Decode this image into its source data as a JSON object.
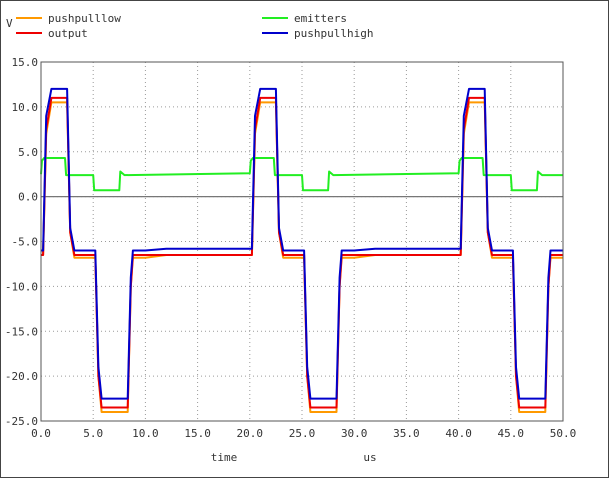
{
  "chart_data": {
    "type": "line",
    "title": "",
    "xlabel": "time",
    "xunit": "us",
    "ylabel": "V",
    "xlim": [
      0,
      50
    ],
    "ylim": [
      -25,
      15
    ],
    "xticks": [
      0,
      5,
      10,
      15,
      20,
      25,
      30,
      35,
      40,
      45,
      50
    ],
    "yticks": [
      15,
      10,
      5,
      0,
      -5,
      -10,
      -15,
      -20,
      -25
    ],
    "xtick_labels": [
      "0.0",
      "5.0",
      "10.0",
      "15.0",
      "20.0",
      "25.0",
      "30.0",
      "35.0",
      "40.0",
      "45.0",
      "50.0"
    ],
    "ytick_labels": [
      "15.0",
      "10.0",
      "5.0",
      "0.0",
      "-5.0",
      "-10.0",
      "-15.0",
      "-20.0",
      "-25.0"
    ],
    "grid": true,
    "zero_line": true,
    "legend_position": "top",
    "series": [
      {
        "name": "pushpulllow",
        "color": "#ff9900",
        "x": [
          0.0,
          0.2,
          0.5,
          1.0,
          2.5,
          2.8,
          3.2,
          5.2,
          5.5,
          5.8,
          8.3,
          8.6,
          8.8,
          10.0,
          12.0,
          20.0,
          20.2,
          20.5,
          21.0,
          22.5,
          22.8,
          23.2,
          25.2,
          25.5,
          25.8,
          28.3,
          28.6,
          28.8,
          30.0,
          32.0,
          40.0,
          40.2,
          40.5,
          41.0,
          42.5,
          42.8,
          43.2,
          45.2,
          45.5,
          45.8,
          48.3,
          48.6,
          48.8,
          50.0
        ],
        "values": [
          -6.5,
          -6.5,
          7.0,
          10.5,
          10.5,
          -4.0,
          -6.8,
          -6.8,
          -20.0,
          -24.0,
          -24.0,
          -10.0,
          -6.8,
          -6.8,
          -6.5,
          -6.5,
          -6.5,
          7.0,
          10.5,
          10.5,
          -4.0,
          -6.8,
          -6.8,
          -20.0,
          -24.0,
          -24.0,
          -10.0,
          -6.8,
          -6.8,
          -6.5,
          -6.5,
          -6.5,
          7.0,
          10.5,
          10.5,
          -4.0,
          -6.8,
          -6.8,
          -20.0,
          -24.0,
          -24.0,
          -10.0,
          -6.8,
          -6.8
        ]
      },
      {
        "name": "output",
        "color": "#ee0000",
        "x": [
          0.0,
          0.2,
          0.5,
          1.0,
          2.5,
          2.8,
          3.2,
          5.2,
          5.5,
          5.8,
          8.3,
          8.6,
          8.8,
          10.0,
          12.0,
          20.0,
          20.2,
          20.5,
          21.0,
          22.5,
          22.8,
          23.2,
          25.2,
          25.5,
          25.8,
          28.3,
          28.6,
          28.8,
          30.0,
          32.0,
          40.0,
          40.2,
          40.5,
          41.0,
          42.5,
          42.8,
          43.2,
          45.2,
          45.5,
          45.8,
          48.3,
          48.6,
          48.8,
          50.0
        ],
        "values": [
          -6.5,
          -6.5,
          7.5,
          11.0,
          11.0,
          -4.0,
          -6.5,
          -6.5,
          -20.0,
          -23.5,
          -23.5,
          -10.0,
          -6.5,
          -6.5,
          -6.5,
          -6.5,
          -6.5,
          7.5,
          11.0,
          11.0,
          -4.0,
          -6.5,
          -6.5,
          -20.0,
          -23.5,
          -23.5,
          -10.0,
          -6.5,
          -6.5,
          -6.5,
          -6.5,
          -6.5,
          7.5,
          11.0,
          11.0,
          -4.0,
          -6.5,
          -6.5,
          -20.0,
          -23.5,
          -23.5,
          -10.0,
          -6.5,
          -6.5
        ]
      },
      {
        "name": "emitters",
        "color": "#22ee22",
        "x": [
          0.0,
          0.1,
          0.3,
          2.3,
          2.4,
          5.0,
          5.1,
          7.5,
          7.6,
          8.0,
          20.0,
          20.1,
          20.3,
          22.3,
          22.4,
          25.0,
          25.1,
          27.5,
          27.6,
          28.0,
          40.0,
          40.1,
          40.3,
          42.3,
          42.4,
          45.0,
          45.1,
          47.5,
          47.6,
          48.0,
          50.0
        ],
        "values": [
          2.5,
          4.0,
          4.3,
          4.3,
          2.4,
          2.4,
          0.7,
          0.7,
          2.8,
          2.4,
          2.6,
          4.0,
          4.3,
          4.3,
          2.4,
          2.4,
          0.7,
          0.7,
          2.8,
          2.4,
          2.6,
          4.0,
          4.3,
          4.3,
          2.4,
          2.4,
          0.7,
          0.7,
          2.8,
          2.4,
          2.4
        ]
      },
      {
        "name": "pushpullhigh",
        "color": "#0000cc",
        "x": [
          0.0,
          0.2,
          0.5,
          1.0,
          2.5,
          2.8,
          3.2,
          5.2,
          5.5,
          5.8,
          8.3,
          8.6,
          8.8,
          10.0,
          12.0,
          20.0,
          20.2,
          20.5,
          21.0,
          22.5,
          22.8,
          23.2,
          25.2,
          25.5,
          25.8,
          28.3,
          28.6,
          28.8,
          30.0,
          32.0,
          40.0,
          40.2,
          40.5,
          41.0,
          42.5,
          42.8,
          43.2,
          45.2,
          45.5,
          45.8,
          48.3,
          48.6,
          48.8,
          50.0
        ],
        "values": [
          -6.0,
          -6.0,
          9.0,
          12.0,
          12.0,
          -3.5,
          -6.0,
          -6.0,
          -19.0,
          -22.5,
          -22.5,
          -9.0,
          -6.0,
          -6.0,
          -5.8,
          -5.8,
          -5.8,
          9.0,
          12.0,
          12.0,
          -3.5,
          -6.0,
          -6.0,
          -19.0,
          -22.5,
          -22.5,
          -9.0,
          -6.0,
          -6.0,
          -5.8,
          -5.8,
          -5.8,
          9.0,
          12.0,
          12.0,
          -3.5,
          -6.0,
          -6.0,
          -19.0,
          -22.5,
          -22.5,
          -9.0,
          -6.0,
          -6.0
        ]
      }
    ]
  }
}
